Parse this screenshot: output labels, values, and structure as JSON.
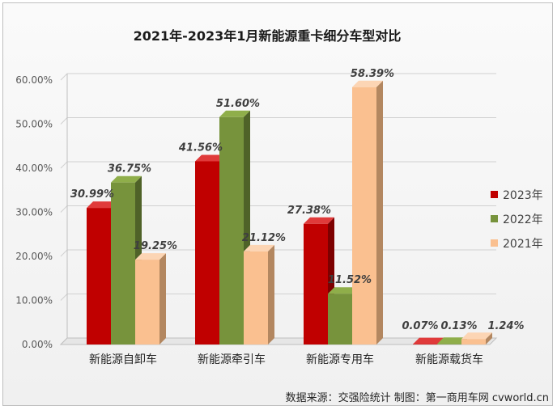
{
  "chart_data": {
    "type": "bar",
    "title": "2021年-2023年1月新能源重卡细分车型对比",
    "categories": [
      "新能源自卸车",
      "新能源牵引车",
      "新能源专用车",
      "新能源载货车"
    ],
    "series": [
      {
        "name": "2023年",
        "values": [
          30.99,
          41.56,
          27.38,
          0.07
        ],
        "labels": [
          "30.99%",
          "41.56%",
          "27.38%",
          "0.07%"
        ],
        "color": "#c00000",
        "side": "#7d0000",
        "top": "#e03a3a"
      },
      {
        "name": "2022年",
        "values": [
          36.75,
          51.6,
          11.52,
          0.13
        ],
        "labels": [
          "36.75%",
          "51.60%",
          "11.52%",
          "0.13%"
        ],
        "color": "#77933c",
        "side": "#4f6228",
        "top": "#8fae4a"
      },
      {
        "name": "2021年",
        "values": [
          19.25,
          21.12,
          58.39,
          1.24
        ],
        "labels": [
          "19.25%",
          "21.12%",
          "58.39%",
          "1.24%"
        ],
        "color": "#fac090",
        "side": "#b38760",
        "top": "#fcd5b4"
      }
    ],
    "ylim": [
      0,
      60
    ],
    "yticks": [
      "0.00%",
      "10.00%",
      "20.00%",
      "30.00%",
      "40.00%",
      "50.00%",
      "60.00%"
    ],
    "grid": true,
    "legend_position": "right"
  },
  "source_text": "数据来源：交强险统计  制图：第一商用车网 cvworld.cn"
}
